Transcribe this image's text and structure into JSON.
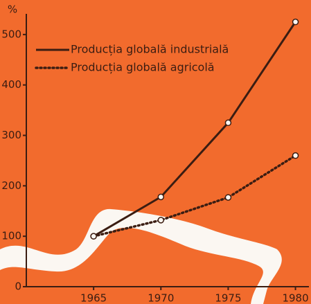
{
  "chart_data": {
    "type": "line",
    "y_label": "%",
    "x": [
      1965,
      1970,
      1975,
      1980
    ],
    "series": [
      {
        "name": "Producția globală industrială",
        "color": "#3b1d12",
        "style": "solid",
        "values": [
          100,
          178,
          325,
          525
        ]
      },
      {
        "name": "Producția globală agricolă",
        "color": "#3b1d12",
        "style": "dotted",
        "values": [
          100,
          132,
          177,
          260
        ]
      }
    ],
    "xlim": [
      1960,
      1981
    ],
    "xticks": [
      1965,
      1970,
      1975,
      1980
    ],
    "ylim": [
      0,
      530
    ],
    "yticks": [
      0,
      100,
      200,
      300,
      400,
      500
    ]
  }
}
